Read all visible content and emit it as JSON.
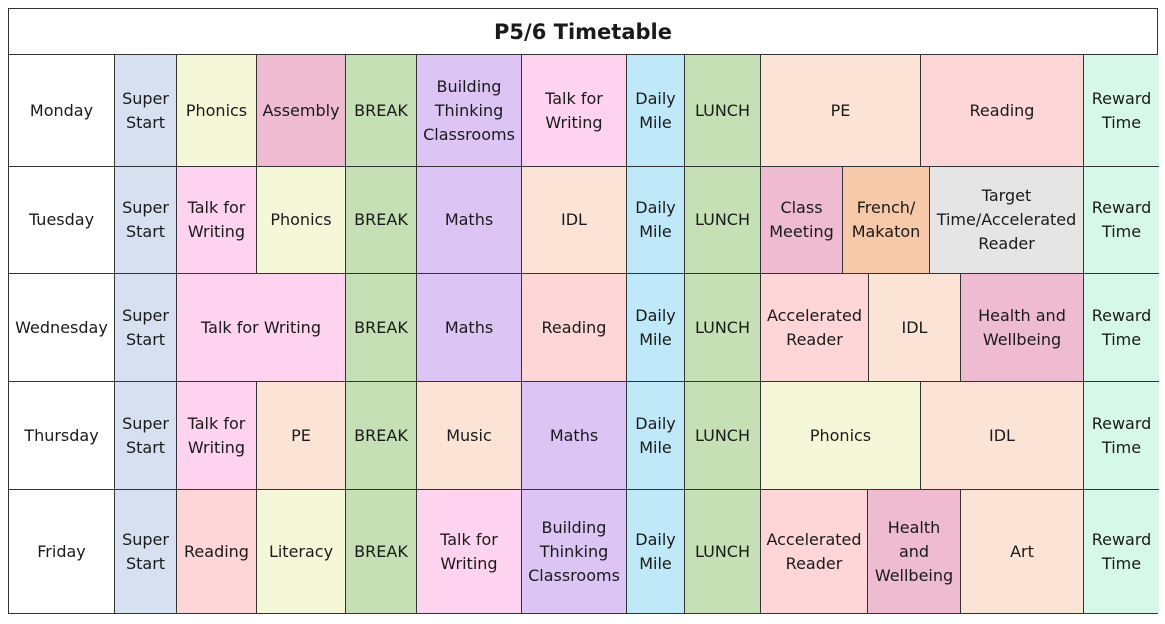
{
  "title": "P5/6 Timetable",
  "colors": {
    "blue": "#d6e0f0",
    "cream": "#f5f7d9",
    "pink": "#eebbd1",
    "green": "#c5e0b4",
    "purple": "#dcc4f5",
    "lightpink": "#fdd3ef",
    "cyan": "#bfe9f9",
    "peach": "#fbe4d6",
    "rose": "#fed6d7",
    "mint": "#d6f8e8",
    "orange": "#f8c9a9",
    "grey": "#e5e5e5"
  },
  "days": [
    {
      "name": "Monday",
      "cells": [
        {
          "text": "Super\nStart",
          "color": "blue"
        },
        {
          "text": "Phonics",
          "color": "cream"
        },
        {
          "text": "Assembly",
          "color": "pink"
        },
        {
          "text": "BREAK",
          "color": "green"
        },
        {
          "text": "Building\nThinking\nClassrooms",
          "color": "purple"
        },
        {
          "text": "Talk for\nWriting",
          "color": "lightpink"
        },
        {
          "text": "Daily\nMile",
          "color": "cyan"
        },
        {
          "text": "LUNCH",
          "color": "green"
        },
        {
          "text": "PE",
          "color": "peach"
        },
        {
          "text": "Reading",
          "color": "rose"
        },
        {
          "text": "Reward\nTime",
          "color": "mint"
        }
      ]
    },
    {
      "name": "Tuesday",
      "cells": [
        {
          "text": "Super\nStart",
          "color": "blue"
        },
        {
          "text": "Talk for\nWriting",
          "color": "lightpink"
        },
        {
          "text": "Phonics",
          "color": "cream"
        },
        {
          "text": "BREAK",
          "color": "green"
        },
        {
          "text": "Maths",
          "color": "purple"
        },
        {
          "text": "IDL",
          "color": "peach"
        },
        {
          "text": "Daily\nMile",
          "color": "cyan"
        },
        {
          "text": "LUNCH",
          "color": "green"
        },
        {
          "text": "Class\nMeeting",
          "color": "pink"
        },
        {
          "text": "French/\nMakaton",
          "color": "orange"
        },
        {
          "text": "Target\nTime/Accelerated\nReader",
          "color": "grey"
        },
        {
          "text": "Reward\nTime",
          "color": "mint"
        }
      ]
    },
    {
      "name": "Wednesday",
      "cells": [
        {
          "text": "Super\nStart",
          "color": "blue"
        },
        {
          "text": "Talk for Writing",
          "color": "lightpink"
        },
        {
          "text": "BREAK",
          "color": "green"
        },
        {
          "text": "Maths",
          "color": "purple"
        },
        {
          "text": "Reading",
          "color": "rose"
        },
        {
          "text": "Daily\nMile",
          "color": "cyan"
        },
        {
          "text": "LUNCH",
          "color": "green"
        },
        {
          "text": "Accelerated\nReader",
          "color": "rose"
        },
        {
          "text": "IDL",
          "color": "peach"
        },
        {
          "text": "Health and\nWellbeing",
          "color": "pink"
        },
        {
          "text": "Reward\nTime",
          "color": "mint"
        }
      ]
    },
    {
      "name": "Thursday",
      "cells": [
        {
          "text": "Super\nStart",
          "color": "blue"
        },
        {
          "text": "Talk for\nWriting",
          "color": "lightpink"
        },
        {
          "text": "PE",
          "color": "peach"
        },
        {
          "text": "BREAK",
          "color": "green"
        },
        {
          "text": "Music",
          "color": "peach"
        },
        {
          "text": "Maths",
          "color": "purple"
        },
        {
          "text": "Daily\nMile",
          "color": "cyan"
        },
        {
          "text": "LUNCH",
          "color": "green"
        },
        {
          "text": "Phonics",
          "color": "cream"
        },
        {
          "text": "IDL",
          "color": "peach"
        },
        {
          "text": "Reward\nTime",
          "color": "mint"
        }
      ]
    },
    {
      "name": "Friday",
      "cells": [
        {
          "text": "Super\nStart",
          "color": "blue"
        },
        {
          "text": "Reading",
          "color": "rose"
        },
        {
          "text": "Literacy",
          "color": "cream"
        },
        {
          "text": "BREAK",
          "color": "green"
        },
        {
          "text": "Talk for\nWriting",
          "color": "lightpink"
        },
        {
          "text": "Building\nThinking\nClassrooms",
          "color": "purple"
        },
        {
          "text": "Daily\nMile",
          "color": "cyan"
        },
        {
          "text": "LUNCH",
          "color": "green"
        },
        {
          "text": "Accelerated\nReader",
          "color": "rose"
        },
        {
          "text": "Health\nand\nWellbeing",
          "color": "pink"
        },
        {
          "text": "Art",
          "color": "peach"
        },
        {
          "text": "Reward\nTime",
          "color": "mint"
        }
      ]
    }
  ]
}
